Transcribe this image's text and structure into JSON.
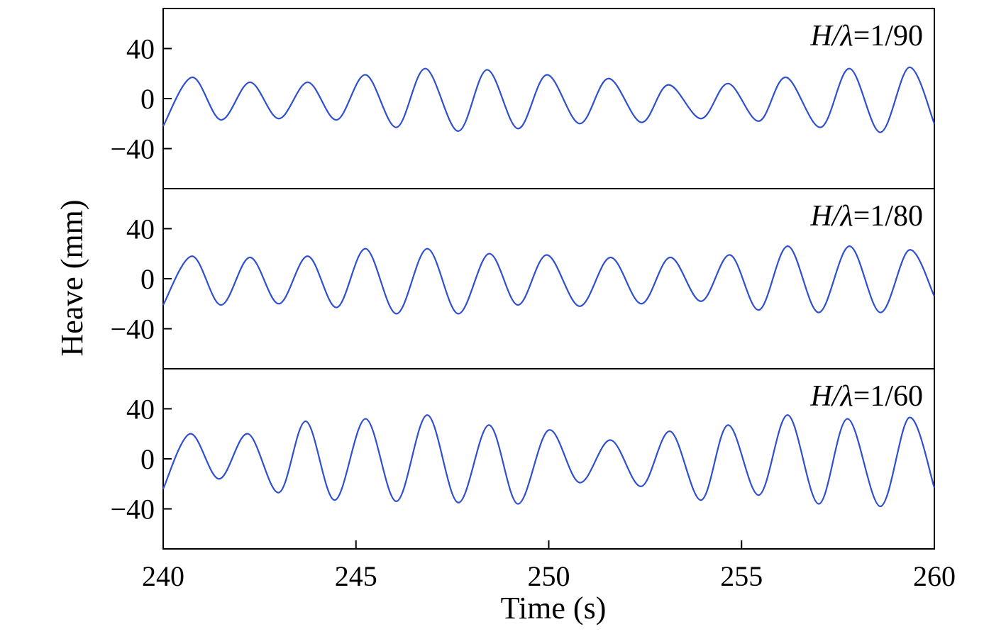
{
  "chart_data": {
    "type": "line",
    "xlabel": "Time (s)",
    "ylabel": "Heave (mm)",
    "xlim": [
      240,
      260
    ],
    "xticks": [
      "240",
      "245",
      "250",
      "255",
      "260"
    ],
    "grid": false,
    "line_color": "#2f4fd0",
    "panels": [
      {
        "annotation_italic": "H/λ",
        "annotation_rest": "=1/90",
        "ylim": [
          -72,
          72
        ],
        "yticks": [
          "40",
          "0",
          "−40"
        ],
        "ytick_values": [
          40,
          0,
          -40
        ],
        "series": [
          {
            "x": [
              240.0,
              240.75,
              241.5,
              242.25,
              243.0,
              243.75,
              244.5,
              245.25,
              246.05,
              246.8,
              247.65,
              248.4,
              249.2,
              249.95,
              250.8,
              251.55,
              252.4,
              253.1,
              253.95,
              254.65,
              255.45,
              256.15,
              257.05,
              257.8,
              258.6,
              259.35,
              260.0
            ],
            "y": [
              -22,
              17,
              -17,
              13,
              -16,
              13,
              -17,
              19,
              -23,
              24,
              -26,
              23,
              -24,
              19,
              -20,
              16,
              -19,
              11,
              -16,
              12,
              -18,
              17,
              -23,
              24,
              -27,
              25,
              -20
            ]
          }
        ]
      },
      {
        "annotation_italic": "H/λ",
        "annotation_rest": "=1/80",
        "ylim": [
          -72,
          72
        ],
        "yticks": [
          "40",
          "0",
          "−40"
        ],
        "ytick_values": [
          40,
          0,
          -40
        ],
        "series": [
          {
            "x": [
              240.0,
              240.75,
              241.5,
              242.25,
              243.0,
              243.75,
              244.5,
              245.25,
              246.05,
              246.85,
              247.65,
              248.45,
              249.2,
              249.95,
              250.8,
              251.6,
              252.4,
              253.15,
              253.95,
              254.7,
              255.45,
              256.2,
              257.0,
              257.8,
              258.6,
              259.35,
              260.0
            ],
            "y": [
              -21,
              18,
              -21,
              17,
              -20,
              18,
              -23,
              24,
              -28,
              24,
              -28,
              20,
              -21,
              19,
              -22,
              17,
              -20,
              17,
              -18,
              19,
              -25,
              26,
              -27,
              26,
              -27,
              23,
              -14
            ]
          }
        ]
      },
      {
        "annotation_italic": "H/λ",
        "annotation_rest": "=1/60",
        "ylim": [
          -72,
          72
        ],
        "yticks": [
          "40",
          "0",
          "−40"
        ],
        "ytick_values": [
          40,
          0,
          -40
        ],
        "series": [
          {
            "x": [
              240.0,
              240.7,
              241.45,
              242.2,
              243.0,
              243.7,
              244.45,
              245.25,
              246.05,
              246.85,
              247.65,
              248.45,
              249.2,
              250.0,
              250.8,
              251.6,
              252.4,
              253.15,
              253.95,
              254.65,
              255.45,
              256.2,
              257.0,
              257.75,
              258.6,
              259.35,
              260.0
            ],
            "y": [
              -24,
              20,
              -16,
              20,
              -27,
              30,
              -33,
              32,
              -34,
              35,
              -35,
              27,
              -36,
              23,
              -19,
              15,
              -22,
              22,
              -33,
              27,
              -29,
              35,
              -36,
              32,
              -38,
              33,
              -23
            ]
          }
        ]
      }
    ]
  }
}
